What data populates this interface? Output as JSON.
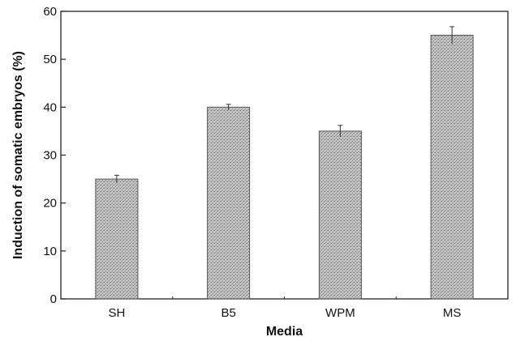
{
  "chart_data": {
    "type": "bar",
    "categories": [
      "SH",
      "B5",
      "WPM",
      "MS"
    ],
    "values": [
      25,
      40,
      35,
      55
    ],
    "errors": [
      0.8,
      0.6,
      1.2,
      1.8
    ],
    "title": "",
    "xlabel": "Media",
    "ylabel": "Induction of somatic embryos (%)",
    "ylim": [
      0,
      60
    ],
    "yticks": [
      0,
      10,
      20,
      30,
      40,
      50,
      60
    ],
    "grid": false,
    "legend": "none",
    "colors": {
      "bar_fill": "#b9b9b9",
      "bar_stroke": "#555555",
      "axis": "#222222"
    }
  }
}
